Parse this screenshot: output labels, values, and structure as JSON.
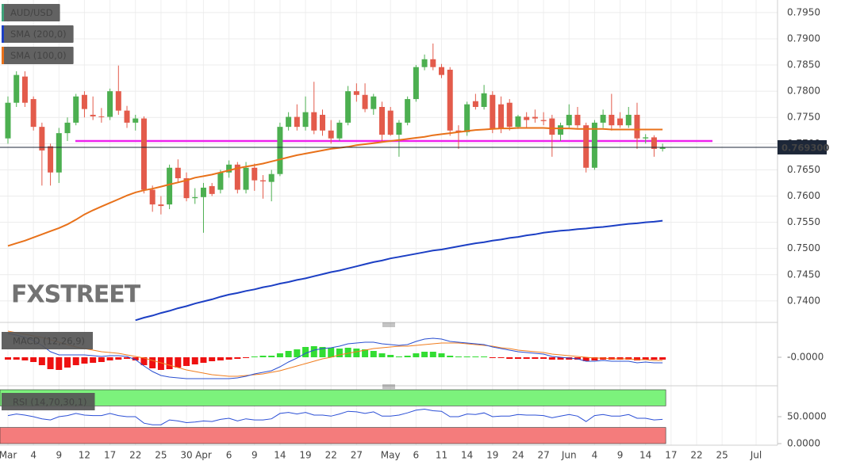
{
  "chart_data": [
    {
      "type": "candlestick",
      "watermark": "FXSTREET",
      "categories": [
        "Mar",
        null,
        null,
        "4",
        null,
        null,
        "9",
        null,
        null,
        "12",
        null,
        null,
        "17",
        null,
        null,
        "22",
        null,
        null,
        "25",
        null,
        null,
        "30",
        null,
        "Apr",
        null,
        null,
        "6",
        null,
        null,
        "9",
        null,
        null,
        "14",
        null,
        null,
        "19",
        null,
        null,
        "22",
        null,
        null,
        "27",
        null,
        null,
        null,
        "May",
        null,
        null,
        "6",
        null,
        null,
        "11",
        null,
        null,
        "14",
        null,
        null,
        "19",
        null,
        null,
        "24",
        null,
        null,
        "27",
        null,
        null,
        "Jun",
        null,
        null,
        "4",
        null,
        null,
        "9",
        null,
        null,
        "14",
        null,
        null,
        "17",
        null,
        null,
        "22",
        null,
        null,
        "25",
        null,
        null,
        null,
        "Jul"
      ],
      "ylim": [
        0.7362,
        0.7974
      ],
      "yticks": [
        {
          "value": 0.74,
          "label": "0.7400"
        },
        {
          "value": 0.745,
          "label": "0.7450"
        },
        {
          "value": 0.75,
          "label": "0.7500"
        },
        {
          "value": 0.755,
          "label": "0.7550"
        },
        {
          "value": 0.76,
          "label": "0.7600"
        },
        {
          "value": 0.765,
          "label": "0.7650"
        },
        {
          "value": 0.77,
          "label": "0.7700"
        },
        {
          "value": 0.775,
          "label": "0.7750"
        },
        {
          "value": 0.78,
          "label": "0.7800"
        },
        {
          "value": 0.785,
          "label": "0.7850"
        },
        {
          "value": 0.79,
          "label": "0.7900"
        },
        {
          "value": 0.795,
          "label": "0.7950"
        }
      ],
      "grid": true,
      "last_value": 0.7693,
      "last_value_label": "0.769300",
      "level": {
        "value": 0.7705,
        "color": "#ee22ee"
      },
      "series": [
        {
          "name": "AUD/USD",
          "color": "#3fa27a",
          "up_color": "#4caf50",
          "down_color": "#e35b4b",
          "open": [
            0.771,
            0.7778,
            0.7828,
            0.7785,
            0.7732,
            0.7695,
            0.7645,
            0.772,
            0.774,
            0.7793,
            0.7755,
            0.7752,
            0.7751,
            0.78,
            0.7763,
            0.774,
            0.7748,
            0.7612,
            0.7584,
            0.7584,
            0.7654,
            0.7634,
            0.7596,
            0.7598,
            0.7619,
            0.7612,
            0.7645,
            0.766,
            0.7612,
            0.7654,
            0.763,
            0.7627,
            0.7642,
            0.7732,
            0.7751,
            0.7732,
            0.776,
            0.7755,
            0.7725,
            0.771,
            0.774,
            0.78,
            0.7793,
            0.7766,
            0.777,
            0.7763,
            0.7717,
            0.774,
            0.7785,
            0.7846,
            0.7861,
            0.7846,
            0.7841,
            0.7725,
            0.7722,
            0.7781,
            0.777,
            0.7793,
            0.7775,
            0.7778,
            0.7732,
            0.7751,
            0.7751,
            0.7745,
            0.7748,
            0.7717,
            0.7735,
            0.7755,
            0.7735,
            0.7654,
            0.774,
            0.7755,
            0.7748,
            0.7735,
            0.7755,
            0.771,
            0.7712,
            0.769,
            null,
            null,
            null,
            null,
            null,
            null,
            null,
            null,
            null,
            null,
            null
          ],
          "high": [
            0.779,
            0.7838,
            0.7838,
            0.779,
            0.774,
            0.77,
            0.773,
            0.775,
            0.7795,
            0.78,
            0.779,
            0.7768,
            0.7805,
            0.7849,
            0.7772,
            0.7755,
            0.7752,
            0.762,
            0.76,
            0.766,
            0.767,
            0.7645,
            0.7615,
            0.7625,
            0.7625,
            0.765,
            0.7668,
            0.7665,
            0.7665,
            0.7662,
            0.764,
            0.765,
            0.774,
            0.776,
            0.7775,
            0.779,
            0.7818,
            0.7765,
            0.7745,
            0.7745,
            0.781,
            0.7815,
            0.7815,
            0.7795,
            0.778,
            0.777,
            0.7745,
            0.779,
            0.785,
            0.787,
            0.7891,
            0.7852,
            0.7846,
            0.7735,
            0.778,
            0.7795,
            0.7812,
            0.78,
            0.779,
            0.7785,
            0.7755,
            0.776,
            0.7765,
            0.776,
            0.7755,
            0.774,
            0.7775,
            0.777,
            0.774,
            0.7745,
            0.7765,
            0.7795,
            0.776,
            0.777,
            0.7778,
            0.7718,
            0.7716,
            0.77,
            null,
            null,
            null,
            null,
            null,
            null,
            null,
            null,
            null,
            null,
            null
          ],
          "low": [
            0.77,
            0.777,
            0.777,
            0.7725,
            0.762,
            0.762,
            0.7625,
            0.7705,
            0.7735,
            0.775,
            0.7745,
            0.774,
            0.7745,
            0.7755,
            0.773,
            0.7725,
            0.7605,
            0.757,
            0.7565,
            0.7575,
            0.7625,
            0.759,
            0.7585,
            0.753,
            0.76,
            0.7605,
            0.7635,
            0.7605,
            0.7605,
            0.761,
            0.7595,
            0.759,
            0.7638,
            0.7725,
            0.7725,
            0.7725,
            0.7718,
            0.7715,
            0.77,
            0.7705,
            0.7735,
            0.778,
            0.776,
            0.7755,
            0.7705,
            0.7715,
            0.7675,
            0.7735,
            0.778,
            0.784,
            0.784,
            0.7825,
            0.7715,
            0.769,
            0.7715,
            0.7765,
            0.7765,
            0.772,
            0.772,
            0.7725,
            0.7728,
            0.773,
            0.774,
            0.7735,
            0.7675,
            0.7705,
            0.773,
            0.773,
            0.7645,
            0.765,
            0.773,
            0.7725,
            0.773,
            0.773,
            0.769,
            0.77,
            0.7675,
            0.7685,
            null,
            null,
            null,
            null,
            null,
            null,
            null,
            null,
            null,
            null,
            null
          ],
          "close": [
            0.7778,
            0.7831,
            0.7778,
            0.7732,
            0.7687,
            0.7645,
            0.772,
            0.774,
            0.779,
            0.7766,
            0.7752,
            0.7751,
            0.78,
            0.7763,
            0.774,
            0.7748,
            0.7612,
            0.7584,
            0.7581,
            0.7654,
            0.7634,
            0.7596,
            0.7598,
            0.7616,
            0.7604,
            0.7645,
            0.766,
            0.7612,
            0.7654,
            0.763,
            0.7628,
            0.7642,
            0.7732,
            0.7751,
            0.7732,
            0.776,
            0.7725,
            0.7725,
            0.771,
            0.774,
            0.78,
            0.7793,
            0.7766,
            0.779,
            0.7717,
            0.7717,
            0.774,
            0.7785,
            0.7846,
            0.7861,
            0.7846,
            0.7831,
            0.7725,
            0.7722,
            0.7775,
            0.777,
            0.7796,
            0.7729,
            0.7729,
            0.7732,
            0.7752,
            0.7745,
            0.7748,
            0.7743,
            0.7717,
            0.7735,
            0.7755,
            0.7735,
            0.7654,
            0.774,
            0.7755,
            0.7735,
            0.7735,
            0.7755,
            0.771,
            0.7712,
            0.769,
            0.7693,
            null,
            null,
            null,
            null,
            null,
            null,
            null,
            null,
            null,
            null,
            null
          ]
        },
        {
          "name": "SMA (200,0)",
          "color": "#1c3fc4",
          "values": [
            null,
            null,
            null,
            null,
            null,
            null,
            null,
            null,
            null,
            null,
            null,
            null,
            null,
            null,
            null,
            0.7363,
            0.7368,
            0.7372,
            0.7377,
            0.7381,
            0.7386,
            0.739,
            0.7395,
            0.7399,
            0.7403,
            0.7408,
            0.7412,
            0.7415,
            0.7419,
            0.7422,
            0.7426,
            0.7429,
            0.7433,
            0.7436,
            0.744,
            0.7443,
            0.7447,
            0.7451,
            0.7455,
            0.7458,
            0.7462,
            0.7466,
            0.747,
            0.7474,
            0.7477,
            0.7481,
            0.7484,
            0.7487,
            0.749,
            0.7493,
            0.7496,
            0.7498,
            0.7501,
            0.7504,
            0.7507,
            0.751,
            0.7512,
            0.7515,
            0.7517,
            0.752,
            0.7522,
            0.7525,
            0.7527,
            0.753,
            0.7532,
            0.7534,
            0.7535,
            0.7537,
            0.7538,
            0.754,
            0.7541,
            0.7543,
            0.7545,
            0.7547,
            0.7548,
            0.755,
            0.7551,
            0.7553,
            null,
            null,
            null,
            null,
            null,
            null,
            null,
            null,
            null,
            null,
            null
          ]
        },
        {
          "name": "SMA (100,0)",
          "color": "#e8711a",
          "values": [
            0.7505,
            0.751,
            0.7515,
            0.7521,
            0.7527,
            0.7533,
            0.7539,
            0.7546,
            0.7555,
            0.7565,
            0.7573,
            0.758,
            0.7587,
            0.7594,
            0.7601,
            0.7607,
            0.7611,
            0.7614,
            0.7618,
            0.7622,
            0.7626,
            0.763,
            0.7635,
            0.7638,
            0.7641,
            0.7645,
            0.7649,
            0.7653,
            0.7656,
            0.7659,
            0.7662,
            0.7666,
            0.767,
            0.7674,
            0.7678,
            0.7681,
            0.7684,
            0.7687,
            0.769,
            0.7692,
            0.7694,
            0.7697,
            0.7699,
            0.7701,
            0.7703,
            0.7705,
            0.7707,
            0.7709,
            0.7711,
            0.7713,
            0.7716,
            0.7718,
            0.772,
            0.7722,
            0.7724,
            0.7726,
            0.7727,
            0.7728,
            0.7729,
            0.7729,
            0.773,
            0.773,
            0.773,
            0.773,
            0.7729,
            0.7729,
            0.7729,
            0.7728,
            0.7728,
            0.7728,
            0.7728,
            0.7727,
            0.7727,
            0.7727,
            0.7727,
            0.7727,
            0.7727,
            0.7727,
            null,
            null,
            null,
            null,
            null,
            null,
            null,
            null,
            null,
            null,
            null
          ]
        }
      ]
    },
    {
      "type": "macd",
      "title": "MACD (12,26,9)",
      "ylim": [
        -0.0035,
        0.0035
      ],
      "yticks": [
        {
          "value": 0,
          "label": "-0.0000"
        }
      ],
      "macd_color": "#2a4fd0",
      "signal_color": "#f07d1e",
      "up_color": "#33dd33",
      "down_color": "#ee1111",
      "histogram": [
        -0.0003,
        -0.0003,
        -0.0004,
        -0.0006,
        -0.001,
        -0.0015,
        -0.0016,
        -0.0013,
        -0.001,
        -0.0008,
        -0.0007,
        -0.0006,
        -0.0004,
        -0.0003,
        -0.0002,
        -0.0004,
        -0.001,
        -0.0014,
        -0.0016,
        -0.0015,
        -0.0013,
        -0.0011,
        -0.0009,
        -0.0007,
        -0.0005,
        -0.0004,
        -0.0003,
        -0.0002,
        -0.0001,
        0.0001,
        0.0002,
        0.0002,
        0.0005,
        0.0008,
        0.001,
        0.0013,
        0.0014,
        0.0013,
        0.0012,
        0.0011,
        0.0012,
        0.0011,
        0.001,
        0.0008,
        0.0005,
        0.0003,
        0.0001,
        0.0002,
        0.0005,
        0.0007,
        0.0007,
        0.0005,
        0.0002,
        0.0001,
        0.0001,
        0.0001,
        0.0001,
        -0.0001,
        -0.0001,
        -0.0002,
        -0.0002,
        -0.0002,
        -0.0002,
        -0.0002,
        -0.0003,
        -0.0003,
        -0.0003,
        -0.0003,
        -0.0005,
        -0.0004,
        -0.0003,
        -0.0003,
        -0.0003,
        -0.0003,
        -0.0004,
        -0.0003,
        -0.0003,
        -0.0003,
        null,
        null,
        null,
        null,
        null,
        null,
        null,
        null,
        null,
        null,
        null
      ],
      "macd": [
        0.003,
        0.0028,
        0.0025,
        0.0021,
        0.0015,
        0.0007,
        0.0003,
        0.0003,
        0.0003,
        0.0003,
        0.0002,
        0.0001,
        0.0002,
        0.0002,
        0.0001,
        -0.0003,
        -0.0011,
        -0.0018,
        -0.0023,
        -0.0025,
        -0.0026,
        -0.0027,
        -0.0027,
        -0.0027,
        -0.0027,
        -0.0027,
        -0.0027,
        -0.0026,
        -0.0024,
        -0.0021,
        -0.0019,
        -0.0017,
        -0.0012,
        -0.0006,
        -0.0001,
        0.0005,
        0.0009,
        0.0011,
        0.0012,
        0.0014,
        0.0017,
        0.0018,
        0.0019,
        0.0019,
        0.0017,
        0.0016,
        0.0015,
        0.0016,
        0.002,
        0.0023,
        0.0024,
        0.0023,
        0.002,
        0.0019,
        0.0018,
        0.0017,
        0.0016,
        0.0013,
        0.0011,
        0.0009,
        0.0007,
        0.0006,
        0.0005,
        0.0004,
        0.0001,
        0.0,
        -0.0001,
        -0.0002,
        -0.0005,
        -0.0005,
        -0.0004,
        -0.0005,
        -0.0005,
        -0.0005,
        -0.0007,
        -0.0006,
        -0.0007,
        -0.0007,
        null,
        null,
        null,
        null,
        null,
        null,
        null,
        null,
        null,
        null,
        null
      ],
      "signal": [
        0.0033,
        0.0031,
        0.0029,
        0.0027,
        0.0025,
        0.0022,
        0.0019,
        0.0016,
        0.0013,
        0.0011,
        0.0009,
        0.0007,
        0.0006,
        0.0005,
        0.0003,
        0.0001,
        -0.0001,
        -0.0004,
        -0.0007,
        -0.001,
        -0.0013,
        -0.0016,
        -0.0018,
        -0.002,
        -0.0022,
        -0.0023,
        -0.0024,
        -0.0024,
        -0.0023,
        -0.0022,
        -0.0021,
        -0.0019,
        -0.0017,
        -0.0014,
        -0.0011,
        -0.0008,
        -0.0005,
        -0.0002,
        0.0,
        0.0003,
        0.0005,
        0.0007,
        0.0009,
        0.0011,
        0.0012,
        0.0013,
        0.0014,
        0.0014,
        0.0015,
        0.0016,
        0.0017,
        0.0018,
        0.0018,
        0.0018,
        0.0017,
        0.0016,
        0.0015,
        0.0014,
        0.0012,
        0.0011,
        0.0009,
        0.0008,
        0.0007,
        0.0006,
        0.0004,
        0.0003,
        0.0002,
        0.0001,
        0.0,
        -0.0001,
        -0.0001,
        -0.0002,
        -0.0002,
        -0.0002,
        -0.0003,
        -0.0003,
        -0.0004,
        -0.0004,
        null,
        null,
        null,
        null,
        null,
        null,
        null,
        null,
        null,
        null,
        null
      ]
    },
    {
      "type": "rsi",
      "title": "RSI (14,70,30,1)",
      "ylim": [
        0,
        100
      ],
      "yticks": [
        {
          "value": 50,
          "label": "50.0000"
        },
        {
          "value": 0,
          "label": "0.0000"
        }
      ],
      "overbought": 70,
      "oversold": 30,
      "overbought_color": "#7cf27c",
      "oversold_color": "#f47c7c",
      "color": "#2b4fd6",
      "values": [
        52,
        55,
        53,
        50,
        46,
        44,
        50,
        52,
        56,
        53,
        52,
        52,
        56,
        52,
        50,
        50,
        38,
        35,
        35,
        44,
        42,
        39,
        40,
        42,
        41,
        45,
        47,
        42,
        46,
        44,
        44,
        46,
        56,
        58,
        55,
        58,
        53,
        53,
        51,
        55,
        60,
        59,
        56,
        59,
        51,
        51,
        53,
        57,
        62,
        64,
        61,
        60,
        50,
        50,
        55,
        54,
        57,
        50,
        51,
        51,
        54,
        53,
        53,
        52,
        48,
        51,
        54,
        51,
        41,
        52,
        54,
        51,
        51,
        54,
        47,
        47,
        44,
        45,
        null,
        null,
        null,
        null,
        null,
        null,
        null,
        null,
        null,
        null,
        null
      ]
    }
  ]
}
